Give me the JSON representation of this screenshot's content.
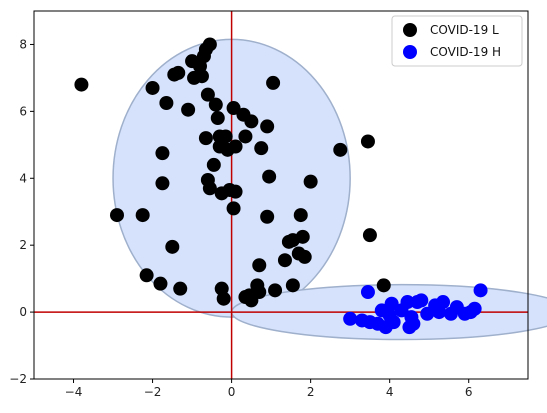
{
  "chart_data": {
    "type": "scatter",
    "xlim": [
      -5,
      7.5
    ],
    "ylim": [
      -2,
      9
    ],
    "x_ticks": [
      "−4",
      "−2",
      "0",
      "2",
      "4",
      "6"
    ],
    "x_tick_values": [
      -4,
      -2,
      0,
      2,
      4,
      6
    ],
    "y_ticks": [
      "−2",
      "0",
      "2",
      "4",
      "6",
      "8"
    ],
    "y_tick_values": [
      -2,
      0,
      2,
      4,
      6,
      8
    ],
    "legend_position": "top-right",
    "reference_lines": {
      "x": 0,
      "y": 0,
      "color": "#c00000"
    },
    "regions": [
      {
        "series": "COVID-19 L",
        "center": [
          0,
          4
        ],
        "half_width": 3,
        "half_height": 4.15,
        "fill": "#d6e2fb",
        "stroke": "#9fb0cc"
      },
      {
        "series": "COVID-19 H",
        "center": [
          4.3,
          0
        ],
        "half_width": 4.3,
        "half_height": 0.82,
        "fill": "#d6e2fb",
        "stroke": "#9fb0cc"
      }
    ],
    "series": [
      {
        "name": "COVID-19 L",
        "color": "#000000",
        "points": [
          [
            -3.8,
            6.8
          ],
          [
            -2.9,
            2.9
          ],
          [
            -2.25,
            2.9
          ],
          [
            -2.15,
            1.1
          ],
          [
            -2.0,
            6.7
          ],
          [
            -1.8,
            0.85
          ],
          [
            -1.75,
            4.75
          ],
          [
            -1.75,
            3.85
          ],
          [
            -1.65,
            6.25
          ],
          [
            -1.5,
            1.95
          ],
          [
            -1.45,
            7.1
          ],
          [
            -1.35,
            7.15
          ],
          [
            -1.3,
            0.7
          ],
          [
            -1.1,
            6.05
          ],
          [
            -1.0,
            7.5
          ],
          [
            -0.95,
            7.0
          ],
          [
            -0.8,
            7.35
          ],
          [
            -0.75,
            7.05
          ],
          [
            -0.7,
            7.65
          ],
          [
            -0.65,
            7.85
          ],
          [
            -0.55,
            8.0
          ],
          [
            -0.6,
            6.5
          ],
          [
            -0.65,
            5.2
          ],
          [
            -0.6,
            3.95
          ],
          [
            -0.55,
            3.7
          ],
          [
            -0.45,
            4.4
          ],
          [
            -0.4,
            6.2
          ],
          [
            -0.35,
            5.8
          ],
          [
            -0.3,
            5.25
          ],
          [
            -0.3,
            4.95
          ],
          [
            -0.25,
            3.55
          ],
          [
            -0.25,
            0.7
          ],
          [
            -0.2,
            0.4
          ],
          [
            -0.15,
            5.25
          ],
          [
            -0.1,
            4.85
          ],
          [
            -0.05,
            3.65
          ],
          [
            0.05,
            6.1
          ],
          [
            0.05,
            3.1
          ],
          [
            0.1,
            4.95
          ],
          [
            0.1,
            3.6
          ],
          [
            0.3,
            5.9
          ],
          [
            0.35,
            5.25
          ],
          [
            0.35,
            0.45
          ],
          [
            0.45,
            0.5
          ],
          [
            0.5,
            0.35
          ],
          [
            0.5,
            5.7
          ],
          [
            0.65,
            0.8
          ],
          [
            0.7,
            0.6
          ],
          [
            0.7,
            1.4
          ],
          [
            0.75,
            4.9
          ],
          [
            0.9,
            5.55
          ],
          [
            0.9,
            2.85
          ],
          [
            0.95,
            4.05
          ],
          [
            1.05,
            6.85
          ],
          [
            1.1,
            0.65
          ],
          [
            1.35,
            1.55
          ],
          [
            1.45,
            2.1
          ],
          [
            1.55,
            2.15
          ],
          [
            1.55,
            0.8
          ],
          [
            1.7,
            1.75
          ],
          [
            1.75,
            2.9
          ],
          [
            1.8,
            2.25
          ],
          [
            1.85,
            1.65
          ],
          [
            2.0,
            3.9
          ],
          [
            2.75,
            4.85
          ],
          [
            3.45,
            5.1
          ],
          [
            3.5,
            2.3
          ],
          [
            3.85,
            0.8
          ]
        ]
      },
      {
        "name": "COVID-19 H",
        "color": "#0000ff",
        "points": [
          [
            3.0,
            -0.2
          ],
          [
            3.3,
            -0.25
          ],
          [
            3.45,
            0.6
          ],
          [
            3.5,
            -0.3
          ],
          [
            3.7,
            -0.35
          ],
          [
            3.8,
            0.05
          ],
          [
            3.9,
            -0.45
          ],
          [
            4.0,
            -0.1
          ],
          [
            4.05,
            0.25
          ],
          [
            4.1,
            -0.3
          ],
          [
            4.3,
            0.05
          ],
          [
            4.45,
            0.3
          ],
          [
            4.5,
            -0.45
          ],
          [
            4.55,
            -0.15
          ],
          [
            4.6,
            -0.35
          ],
          [
            4.7,
            0.3
          ],
          [
            4.8,
            0.35
          ],
          [
            4.95,
            -0.05
          ],
          [
            5.15,
            0.2
          ],
          [
            5.25,
            0.0
          ],
          [
            5.35,
            0.3
          ],
          [
            5.55,
            -0.05
          ],
          [
            5.7,
            0.15
          ],
          [
            5.9,
            -0.05
          ],
          [
            6.05,
            0.0
          ],
          [
            6.15,
            0.1
          ],
          [
            6.3,
            0.65
          ]
        ]
      }
    ]
  }
}
